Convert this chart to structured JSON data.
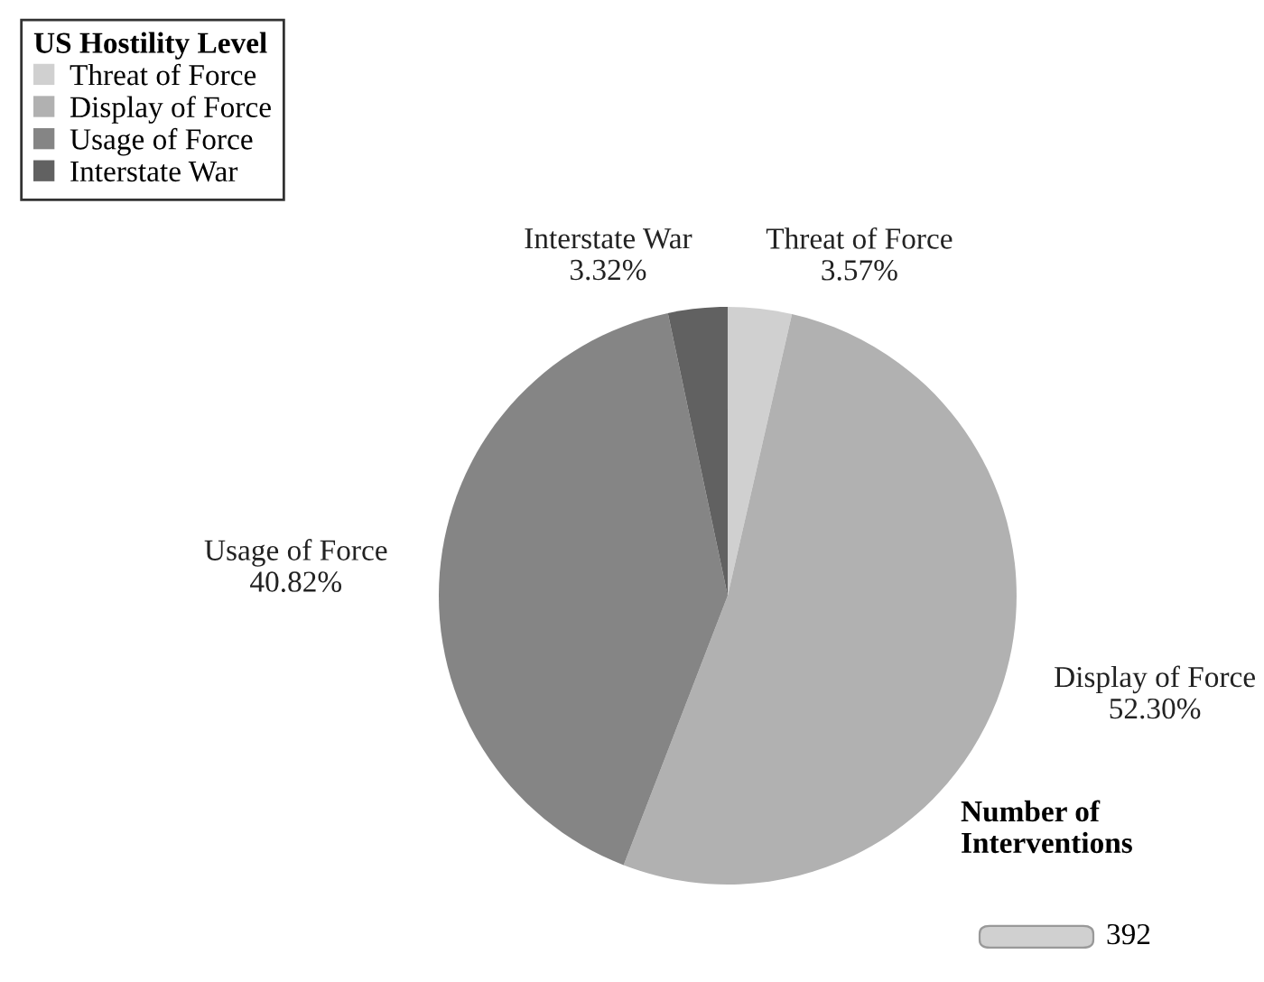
{
  "chart_data": {
    "type": "pie",
    "legend_title": "US Hostility Level",
    "legend": "top left",
    "categories": [
      "Threat of Force",
      "Display of Force",
      "Usage of Force",
      "Interstate War"
    ],
    "values": [
      3.57,
      52.3,
      40.82,
      3.32
    ],
    "value_labels": [
      "3.57%",
      "52.30%",
      "40.82%",
      "3.32%"
    ],
    "colors": [
      "#d0d0d0",
      "#b1b1b1",
      "#858585",
      "#616161"
    ],
    "annotations": [
      "Number of Interventions",
      "392"
    ]
  }
}
